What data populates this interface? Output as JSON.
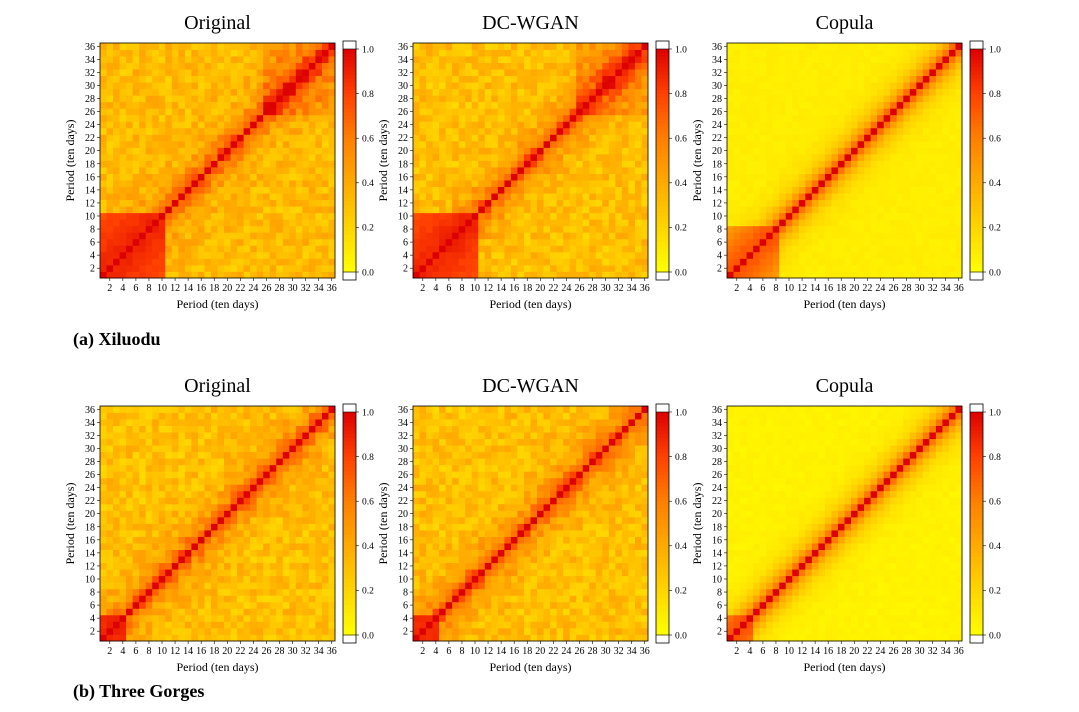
{
  "chart_data": {
    "type": "heatmap",
    "tick_labels": [
      "2",
      "4",
      "6",
      "8",
      "10",
      "12",
      "14",
      "16",
      "18",
      "20",
      "22",
      "24",
      "26",
      "28",
      "30",
      "32",
      "34",
      "36"
    ],
    "x_range": [
      1,
      36
    ],
    "y_range": [
      1,
      36
    ],
    "colorbar": {
      "range": [
        0.0,
        1.0
      ],
      "ticks": [
        "0.0",
        "0.2",
        "0.4",
        "0.6",
        "0.8",
        "1.0"
      ],
      "colors": [
        "#ffff00",
        "#ffd500",
        "#ffaa00",
        "#ff7f00",
        "#ff4000",
        "#dd0000"
      ]
    },
    "rows": [
      {
        "label": "(a) Xiluodu",
        "panels": [
          {
            "title": "Original",
            "xlabel": "Period (ten days)",
            "ylabel": "Period (ten days)",
            "diagonal_corr": 1.0,
            "high_corr_block": [
              1,
              10
            ],
            "off_diagonal_level": 0.32
          },
          {
            "title": "DC-WGAN",
            "xlabel": "Period (ten days)",
            "ylabel": "Period (ten days)",
            "diagonal_corr": 1.0,
            "high_corr_block": [
              1,
              10
            ],
            "off_diagonal_level": 0.3
          },
          {
            "title": "Copula",
            "xlabel": "Period (ten days)",
            "ylabel": "Period (ten days)",
            "diagonal_corr": 1.0,
            "high_corr_block": [
              1,
              8
            ],
            "off_diagonal_level": 0.08
          }
        ]
      },
      {
        "label": "(b) Three Gorges",
        "panels": [
          {
            "title": "Original",
            "xlabel": "Period (ten days)",
            "ylabel": "Period (ten days)",
            "diagonal_corr": 1.0,
            "high_corr_block": [
              1,
              4
            ],
            "off_diagonal_level": 0.3
          },
          {
            "title": "DC-WGAN",
            "xlabel": "Period (ten days)",
            "ylabel": "Period (ten days)",
            "diagonal_corr": 1.0,
            "high_corr_block": [
              1,
              4
            ],
            "off_diagonal_level": 0.3
          },
          {
            "title": "Copula",
            "xlabel": "Period (ten days)",
            "ylabel": "Period (ten days)",
            "diagonal_corr": 1.0,
            "high_corr_block": [
              1,
              4
            ],
            "off_diagonal_level": 0.06
          }
        ]
      }
    ]
  }
}
